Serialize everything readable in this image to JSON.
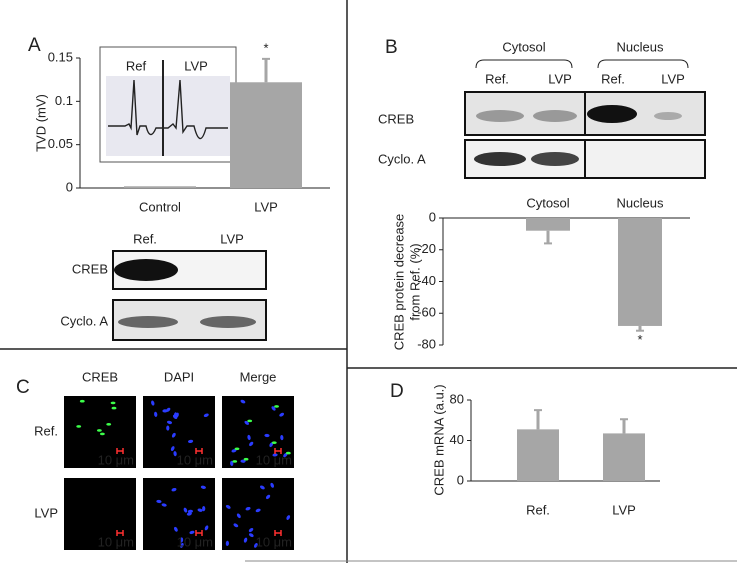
{
  "chart_data": [
    {
      "type": "bar",
      "panel": "A",
      "ylabel": "TVD (mV)",
      "categories": [
        "Control",
        "LVP"
      ],
      "values": [
        0.002,
        0.122
      ],
      "errors": [
        null,
        0.027
      ],
      "color": "#a6a6a6",
      "ylim": [
        0,
        0.15
      ],
      "yticks": [
        0,
        0.05,
        0.1,
        0.15
      ],
      "annotations": [
        {
          "category": "LVP",
          "text": "*"
        }
      ]
    },
    {
      "type": "bar",
      "panel": "B",
      "ylabel": [
        "CREB protein decrease",
        "from Ref. (%)"
      ],
      "categories": [
        "Cytosol",
        "Nucleus"
      ],
      "values": [
        -8,
        -68
      ],
      "errors": [
        8,
        3
      ],
      "color": "#a6a6a6",
      "ylim": [
        -80,
        0
      ],
      "yticks": [
        0,
        -20,
        -40,
        -60,
        -80
      ],
      "annotations": [
        {
          "category": "Nucleus",
          "text": "*"
        }
      ]
    },
    {
      "type": "bar",
      "panel": "D",
      "ylabel": "CREB mRNA (a.u.)",
      "categories": [
        "Ref.",
        "LVP"
      ],
      "values": [
        51,
        47
      ],
      "errors": [
        19,
        14
      ],
      "color": "#a6a6a6",
      "ylim": [
        0,
        80
      ],
      "yticks": [
        0,
        40,
        80
      ]
    }
  ],
  "inset": {
    "labels": [
      "Ref",
      "LVP"
    ]
  },
  "blot_a": {
    "lanes": [
      "Ref.",
      "LVP"
    ],
    "rows": [
      "CREB",
      "Cyclo. A"
    ]
  },
  "blot_b": {
    "groups": [
      "Cytosol",
      "Nucleus"
    ],
    "lanes": [
      "Ref.",
      "LVP",
      "Ref.",
      "LVP"
    ],
    "rows": [
      "CREB",
      "Cyclo. A"
    ]
  },
  "panel_c": {
    "label": "C",
    "columns": [
      "CREB",
      "DAPI",
      "Merge"
    ],
    "rows": [
      "Ref.",
      "LVP"
    ],
    "scale": "10 μm"
  }
}
